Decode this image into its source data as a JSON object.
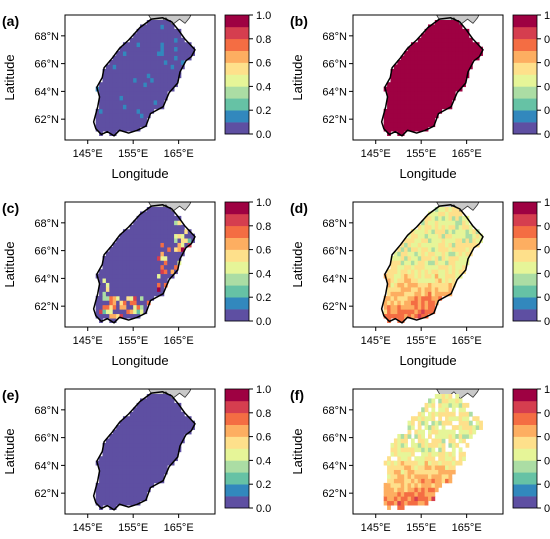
{
  "figure": {
    "panels": [
      {
        "label": "(a)",
        "pattern": "low_uniform"
      },
      {
        "label": "(b)",
        "pattern": "high_uniform"
      },
      {
        "label": "(c)",
        "pattern": "low_with_hotspots"
      },
      {
        "label": "(d)",
        "pattern": "medium_gradient"
      },
      {
        "label": "(e)",
        "pattern": "zero_uniform"
      },
      {
        "label": "(f)",
        "pattern": "medium_gradient_sparse"
      }
    ],
    "xlabel": "Longitude",
    "ylabel": "Latitude",
    "xticks": [
      "145°E",
      "155°E",
      "165°E"
    ],
    "yticks": [
      "62°N",
      "64°N",
      "66°N",
      "68°N"
    ],
    "colorbar_ticks": [
      "0.0",
      "0.2",
      "0.4",
      "0.6",
      "0.8",
      "1.0"
    ],
    "colorbar_colors": [
      "#5e4fa2",
      "#3288bd",
      "#66c2a5",
      "#abdda4",
      "#e6f598",
      "#fee08b",
      "#fdae61",
      "#f46d43",
      "#d53e4f",
      "#9e0142"
    ]
  },
  "chart_data": [
    {
      "type": "heatmap",
      "panel": "(a)",
      "xlabel": "Longitude",
      "ylabel": "Latitude",
      "xlim": [
        140,
        173
      ],
      "ylim": [
        60.5,
        69.5
      ],
      "value_range": [
        0,
        1
      ],
      "dominant_value": 0.05
    },
    {
      "type": "heatmap",
      "panel": "(b)",
      "xlabel": "Longitude",
      "ylabel": "Latitude",
      "xlim": [
        140,
        173
      ],
      "ylim": [
        60.5,
        69.5
      ],
      "value_range": [
        0,
        1
      ],
      "dominant_value": 0.98
    },
    {
      "type": "heatmap",
      "panel": "(c)",
      "xlabel": "Longitude",
      "ylabel": "Latitude",
      "xlim": [
        140,
        173
      ],
      "ylim": [
        60.5,
        69.5
      ],
      "value_range": [
        0,
        1
      ],
      "dominant_value": 0.05
    },
    {
      "type": "heatmap",
      "panel": "(d)",
      "xlabel": "Longitude",
      "ylabel": "Latitude",
      "xlim": [
        140,
        173
      ],
      "ylim": [
        60.5,
        69.5
      ],
      "value_range": [
        0,
        1
      ],
      "dominant_value": 0.5
    },
    {
      "type": "heatmap",
      "panel": "(e)",
      "xlabel": "Longitude",
      "ylabel": "Latitude",
      "xlim": [
        140,
        173
      ],
      "ylim": [
        60.5,
        69.5
      ],
      "value_range": [
        0,
        1
      ],
      "dominant_value": 0.02
    },
    {
      "type": "heatmap",
      "panel": "(f)",
      "xlabel": "Longitude",
      "ylabel": "Latitude",
      "xlim": [
        140,
        173
      ],
      "ylim": [
        60.5,
        69.5
      ],
      "value_range": [
        0,
        1
      ],
      "dominant_value": 0.5
    }
  ]
}
